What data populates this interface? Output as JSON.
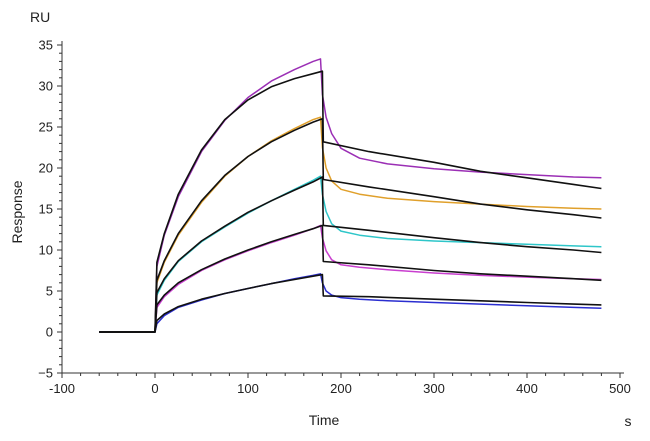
{
  "chart_data": {
    "type": "line",
    "xlabel": "Time",
    "ylabel": "Response",
    "x_unit": "s",
    "y_unit": "RU",
    "xlim": [
      -100,
      500
    ],
    "ylim": [
      -5,
      35
    ],
    "xticks": [
      -100,
      0,
      100,
      200,
      300,
      400,
      500
    ],
    "yticks": [
      -5,
      0,
      5,
      10,
      15,
      20,
      25,
      30,
      35
    ],
    "grid": false,
    "legend": "none",
    "injection_end_s": 180,
    "series": [
      {
        "color": "#9b2fb5",
        "role": "measured",
        "points": [
          [
            -60,
            0.0
          ],
          [
            0,
            0.0
          ],
          [
            2,
            8.0
          ],
          [
            10,
            11.8
          ],
          [
            25,
            16.5
          ],
          [
            50,
            22.0
          ],
          [
            75,
            25.8
          ],
          [
            100,
            28.6
          ],
          [
            125,
            30.6
          ],
          [
            150,
            32.0
          ],
          [
            170,
            33.0
          ],
          [
            178,
            33.3
          ],
          [
            180,
            29.0
          ],
          [
            184,
            26.2
          ],
          [
            190,
            24.2
          ],
          [
            200,
            22.4
          ],
          [
            220,
            21.2
          ],
          [
            250,
            20.5
          ],
          [
            300,
            19.9
          ],
          [
            350,
            19.5
          ],
          [
            400,
            19.2
          ],
          [
            450,
            18.9
          ],
          [
            480,
            18.8
          ]
        ]
      },
      {
        "color": "#e0a02b",
        "role": "measured",
        "points": [
          [
            -60,
            0.0
          ],
          [
            0,
            0.0
          ],
          [
            2,
            6.0
          ],
          [
            10,
            8.5
          ],
          [
            25,
            11.8
          ],
          [
            50,
            15.8
          ],
          [
            75,
            19.0
          ],
          [
            100,
            21.4
          ],
          [
            125,
            23.3
          ],
          [
            150,
            24.8
          ],
          [
            170,
            25.9
          ],
          [
            178,
            26.2
          ],
          [
            180,
            22.5
          ],
          [
            184,
            20.0
          ],
          [
            190,
            18.4
          ],
          [
            200,
            17.4
          ],
          [
            220,
            16.8
          ],
          [
            250,
            16.3
          ],
          [
            300,
            15.9
          ],
          [
            350,
            15.6
          ],
          [
            400,
            15.3
          ],
          [
            450,
            15.1
          ],
          [
            480,
            15.0
          ]
        ]
      },
      {
        "color": "#2ec6c9",
        "role": "measured",
        "points": [
          [
            -60,
            0.0
          ],
          [
            0,
            0.0
          ],
          [
            2,
            4.5
          ],
          [
            10,
            6.3
          ],
          [
            25,
            8.6
          ],
          [
            50,
            11.0
          ],
          [
            75,
            12.8
          ],
          [
            100,
            14.5
          ],
          [
            125,
            16.0
          ],
          [
            150,
            17.4
          ],
          [
            170,
            18.5
          ],
          [
            178,
            19.0
          ],
          [
            180,
            16.8
          ],
          [
            184,
            14.7
          ],
          [
            190,
            13.2
          ],
          [
            200,
            12.3
          ],
          [
            220,
            11.8
          ],
          [
            250,
            11.4
          ],
          [
            300,
            11.1
          ],
          [
            350,
            10.9
          ],
          [
            400,
            10.7
          ],
          [
            450,
            10.5
          ],
          [
            480,
            10.4
          ]
        ]
      },
      {
        "color": "#c93fcf",
        "role": "measured",
        "points": [
          [
            -60,
            0.0
          ],
          [
            0,
            0.0
          ],
          [
            2,
            3.0
          ],
          [
            10,
            4.3
          ],
          [
            25,
            5.8
          ],
          [
            50,
            7.5
          ],
          [
            75,
            8.8
          ],
          [
            100,
            9.9
          ],
          [
            125,
            10.9
          ],
          [
            150,
            11.8
          ],
          [
            170,
            12.6
          ],
          [
            178,
            13.0
          ],
          [
            180,
            11.5
          ],
          [
            184,
            9.9
          ],
          [
            190,
            8.8
          ],
          [
            200,
            8.2
          ],
          [
            220,
            7.9
          ],
          [
            250,
            7.6
          ],
          [
            300,
            7.2
          ],
          [
            350,
            6.9
          ],
          [
            400,
            6.7
          ],
          [
            450,
            6.5
          ],
          [
            480,
            6.4
          ]
        ]
      },
      {
        "color": "#2b2ed0",
        "role": "measured",
        "points": [
          [
            -60,
            0.0
          ],
          [
            0,
            0.0
          ],
          [
            2,
            1.0
          ],
          [
            10,
            2.0
          ],
          [
            25,
            3.0
          ],
          [
            50,
            3.9
          ],
          [
            75,
            4.7
          ],
          [
            100,
            5.3
          ],
          [
            125,
            5.9
          ],
          [
            150,
            6.5
          ],
          [
            170,
            6.9
          ],
          [
            178,
            7.1
          ],
          [
            180,
            6.0
          ],
          [
            184,
            5.0
          ],
          [
            190,
            4.5
          ],
          [
            200,
            4.2
          ],
          [
            220,
            4.0
          ],
          [
            250,
            3.8
          ],
          [
            300,
            3.6
          ],
          [
            350,
            3.4
          ],
          [
            400,
            3.2
          ],
          [
            450,
            3.0
          ],
          [
            480,
            2.9
          ]
        ]
      },
      {
        "color": "#111111",
        "role": "fit",
        "points": [
          [
            -60,
            0.0
          ],
          [
            0,
            0.0
          ],
          [
            2,
            8.5
          ],
          [
            10,
            12.0
          ],
          [
            25,
            16.8
          ],
          [
            50,
            22.2
          ],
          [
            75,
            25.9
          ],
          [
            100,
            28.3
          ],
          [
            125,
            29.9
          ],
          [
            150,
            30.9
          ],
          [
            170,
            31.5
          ],
          [
            180,
            31.8
          ],
          [
            181,
            23.2
          ],
          [
            230,
            22.0
          ],
          [
            300,
            20.7
          ],
          [
            350,
            19.6
          ],
          [
            400,
            18.8
          ],
          [
            450,
            18.0
          ],
          [
            480,
            17.5
          ]
        ]
      },
      {
        "color": "#111111",
        "role": "fit",
        "points": [
          [
            -60,
            0.0
          ],
          [
            0,
            0.0
          ],
          [
            2,
            6.3
          ],
          [
            10,
            8.7
          ],
          [
            25,
            12.0
          ],
          [
            50,
            16.0
          ],
          [
            75,
            19.1
          ],
          [
            100,
            21.4
          ],
          [
            125,
            23.2
          ],
          [
            150,
            24.6
          ],
          [
            170,
            25.6
          ],
          [
            180,
            26.0
          ],
          [
            181,
            18.6
          ],
          [
            230,
            17.7
          ],
          [
            300,
            16.5
          ],
          [
            350,
            15.6
          ],
          [
            400,
            14.9
          ],
          [
            450,
            14.3
          ],
          [
            480,
            13.9
          ]
        ]
      },
      {
        "color": "#111111",
        "role": "fit",
        "points": [
          [
            -60,
            0.0
          ],
          [
            0,
            0.0
          ],
          [
            2,
            4.8
          ],
          [
            10,
            6.5
          ],
          [
            25,
            8.7
          ],
          [
            50,
            11.1
          ],
          [
            75,
            12.9
          ],
          [
            100,
            14.6
          ],
          [
            125,
            16.0
          ],
          [
            150,
            17.3
          ],
          [
            170,
            18.3
          ],
          [
            180,
            18.9
          ],
          [
            181,
            13.0
          ],
          [
            230,
            12.4
          ],
          [
            300,
            11.5
          ],
          [
            350,
            10.9
          ],
          [
            400,
            10.4
          ],
          [
            450,
            10.0
          ],
          [
            480,
            9.7
          ]
        ]
      },
      {
        "color": "#111111",
        "role": "fit",
        "points": [
          [
            -60,
            0.0
          ],
          [
            0,
            0.0
          ],
          [
            2,
            3.3
          ],
          [
            10,
            4.5
          ],
          [
            25,
            6.0
          ],
          [
            50,
            7.6
          ],
          [
            75,
            8.9
          ],
          [
            100,
            10.0
          ],
          [
            125,
            11.0
          ],
          [
            150,
            11.9
          ],
          [
            170,
            12.6
          ],
          [
            180,
            13.0
          ],
          [
            181,
            8.6
          ],
          [
            230,
            8.2
          ],
          [
            300,
            7.5
          ],
          [
            350,
            7.1
          ],
          [
            400,
            6.8
          ],
          [
            450,
            6.5
          ],
          [
            480,
            6.3
          ]
        ]
      },
      {
        "color": "#111111",
        "role": "fit",
        "points": [
          [
            -60,
            0.0
          ],
          [
            0,
            0.0
          ],
          [
            2,
            1.4
          ],
          [
            10,
            2.2
          ],
          [
            25,
            3.1
          ],
          [
            50,
            4.0
          ],
          [
            75,
            4.7
          ],
          [
            100,
            5.3
          ],
          [
            125,
            5.9
          ],
          [
            150,
            6.4
          ],
          [
            170,
            6.8
          ],
          [
            180,
            7.0
          ],
          [
            181,
            4.4
          ],
          [
            230,
            4.3
          ],
          [
            300,
            4.0
          ],
          [
            350,
            3.8
          ],
          [
            400,
            3.6
          ],
          [
            450,
            3.4
          ],
          [
            480,
            3.3
          ]
        ]
      }
    ]
  }
}
